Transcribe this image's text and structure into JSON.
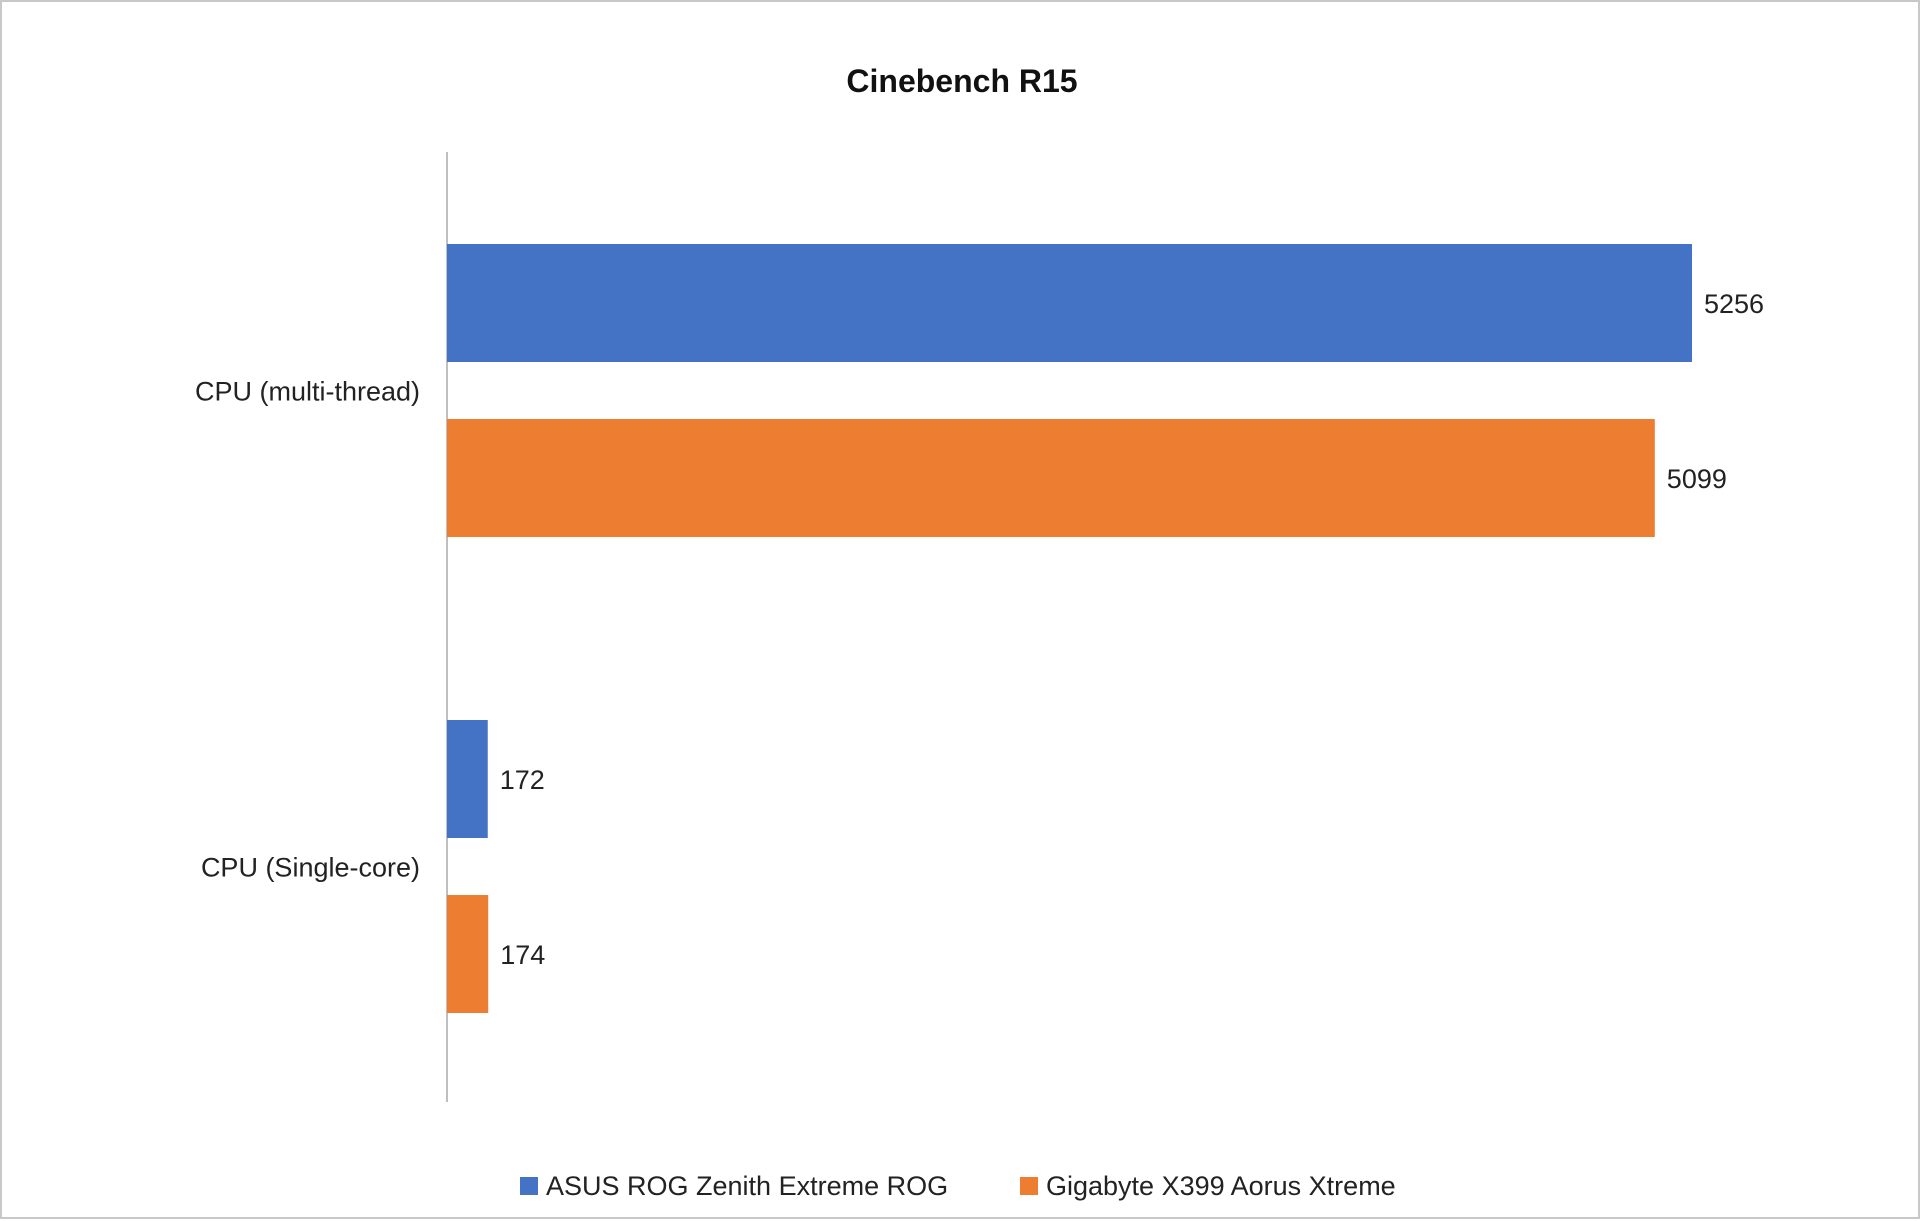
{
  "chart_data": {
    "type": "bar",
    "orientation": "horizontal",
    "title": "Cinebench R15",
    "categories": [
      "CPU (multi-thread)",
      "CPU (Single-core)"
    ],
    "series": [
      {
        "name": "ASUS ROG Zenith Extreme ROG",
        "color": "#4472c4",
        "values": [
          5256,
          172
        ]
      },
      {
        "name": "Gigabyte X399 Aorus Xtreme",
        "color": "#ed7d31",
        "values": [
          5099,
          174
        ]
      }
    ],
    "xlim": [
      0,
      5600
    ],
    "grid": false,
    "axis_labels_shown": false,
    "data_labels": true,
    "legend_position": "bottom"
  }
}
